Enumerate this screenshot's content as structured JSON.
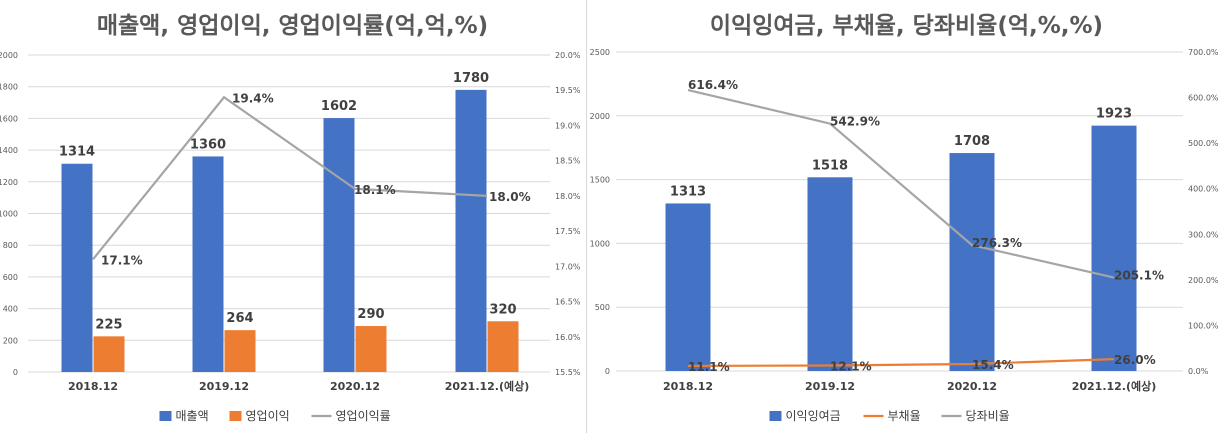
{
  "chart_data": [
    {
      "type": "bar",
      "title": "매출액, 영업이익, 영업이익률(억,억,%)",
      "categories": [
        "2018.12",
        "2019.12",
        "2020.12",
        "2021.12.(예상)"
      ],
      "series": [
        {
          "name": "매출액",
          "kind": "bar",
          "axis": "left",
          "color": "#4472C4",
          "values": [
            1314,
            1360,
            1602,
            1780
          ],
          "labels": [
            "1314",
            "1360",
            "1602",
            "1780"
          ]
        },
        {
          "name": "영업이익",
          "kind": "bar",
          "axis": "left",
          "color": "#ED7D31",
          "values": [
            225,
            264,
            290,
            320
          ],
          "labels": [
            "225",
            "264",
            "290",
            "320"
          ]
        },
        {
          "name": "영업이익률",
          "kind": "line",
          "axis": "right",
          "color": "#A5A5A5",
          "values": [
            17.1,
            19.4,
            18.1,
            18.0
          ],
          "labels": [
            "17.1%",
            "19.4%",
            "18.1%",
            "18.0%"
          ]
        }
      ],
      "y_left": {
        "min": 0,
        "max": 2000,
        "ticks": [
          "0",
          "200",
          "400",
          "600",
          "800",
          "1000",
          "1200",
          "1400",
          "1600",
          "1800",
          "2000"
        ]
      },
      "y_right": {
        "min": 15.5,
        "max": 20.0,
        "ticks": [
          "15.5%",
          "16.0%",
          "16.5%",
          "17.0%",
          "17.5%",
          "18.0%",
          "18.5%",
          "19.0%",
          "19.5%",
          "20.0%"
        ]
      },
      "grid": true,
      "legend": "bottom"
    },
    {
      "type": "bar",
      "title": "이익잉여금, 부채율, 당좌비율(억,%,%)",
      "categories": [
        "2018.12",
        "2019.12",
        "2020.12",
        "2021.12.(예상)"
      ],
      "series": [
        {
          "name": "이익잉여금",
          "kind": "bar",
          "axis": "left",
          "color": "#4472C4",
          "values": [
            1313,
            1518,
            1708,
            1923
          ],
          "labels": [
            "1313",
            "1518",
            "1708",
            "1923"
          ]
        },
        {
          "name": "부채율",
          "kind": "line",
          "axis": "right",
          "color": "#ED7D31",
          "values": [
            11.1,
            12.1,
            15.4,
            26.0
          ],
          "labels": [
            "11.1%",
            "12.1%",
            "15.4%",
            "26.0%"
          ]
        },
        {
          "name": "당좌비율",
          "kind": "line",
          "axis": "right",
          "color": "#A5A5A5",
          "values": [
            616.4,
            542.9,
            276.3,
            205.1
          ],
          "labels": [
            "616.4%",
            "542.9%",
            "276.3%",
            "205.1%"
          ]
        }
      ],
      "y_left": {
        "min": 0,
        "max": 2500,
        "ticks": [
          "0",
          "500",
          "1000",
          "1500",
          "2000",
          "2500"
        ]
      },
      "y_right": {
        "min": 0,
        "max": 700,
        "ticks": [
          "0.0%",
          "100.0%",
          "200.0%",
          "300.0%",
          "400.0%",
          "500.0%",
          "600.0%",
          "700.0%"
        ]
      },
      "grid": true,
      "legend": "bottom"
    }
  ]
}
